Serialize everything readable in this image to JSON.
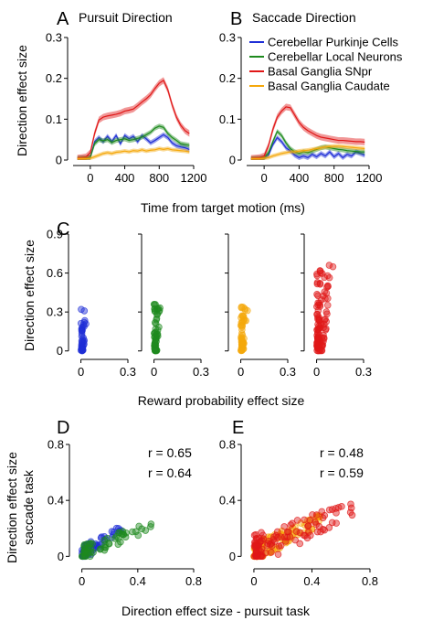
{
  "colors": {
    "purkinje": "#1f2fd6",
    "local": "#1e8a1e",
    "snpr": "#e01818",
    "caudate": "#f5a80c"
  },
  "legend": [
    {
      "key": "purkinje",
      "label": "Cerebellar Purkinje Cells"
    },
    {
      "key": "local",
      "label": "Cerebellar Local Neurons"
    },
    {
      "key": "snpr",
      "label": "Basal Ganglia SNpr"
    },
    {
      "key": "caudate",
      "label": "Basal Ganglia Caudate"
    }
  ],
  "labels": {
    "A_letter": "A",
    "A_title": "Pursuit Direction",
    "B_letter": "B",
    "B_title": "Saccade Direction",
    "C_letter": "C",
    "D_letter": "D",
    "E_letter": "E",
    "ylab_top": "Direction effect size",
    "xlab_top": "Time from target motion (ms)",
    "ylab_C": "Direction effect size",
    "xlab_C": "Reward probability effect size",
    "ylab_D1": "Direction effect size",
    "ylab_D2": "saccade task",
    "xlab_DE": "Direction effect size - pursuit task",
    "D_r1": "r = 0.65",
    "D_r2": "r = 0.64",
    "E_r1": "r = 0.48",
    "E_r2": "r = 0.59"
  },
  "chart_data": [
    {
      "panel": "A",
      "type": "line",
      "title": "Pursuit Direction",
      "xlabel": "Time from target motion (ms)",
      "ylabel": "Direction effect size",
      "xlim": [
        -200,
        1200
      ],
      "ylim": [
        0,
        0.3
      ],
      "xticks": [
        0,
        400,
        800,
        1200
      ],
      "yticks": [
        0,
        0.1,
        0.2,
        0.3
      ],
      "x": [
        -150,
        -100,
        -50,
        0,
        50,
        100,
        150,
        200,
        250,
        300,
        350,
        400,
        450,
        500,
        550,
        600,
        650,
        700,
        750,
        800,
        850,
        900,
        950,
        1000,
        1050,
        1100,
        1150
      ],
      "series": [
        {
          "key": "purkinje",
          "band": 0.006,
          "values": [
            0.003,
            0.004,
            0.004,
            0.006,
            0.045,
            0.055,
            0.045,
            0.058,
            0.045,
            0.06,
            0.04,
            0.06,
            0.052,
            0.058,
            0.045,
            0.06,
            0.052,
            0.042,
            0.048,
            0.055,
            0.062,
            0.055,
            0.042,
            0.035,
            0.032,
            0.03,
            0.026
          ]
        },
        {
          "key": "local",
          "band": 0.006,
          "values": [
            0.004,
            0.005,
            0.005,
            0.007,
            0.04,
            0.05,
            0.047,
            0.05,
            0.043,
            0.048,
            0.05,
            0.052,
            0.048,
            0.05,
            0.053,
            0.056,
            0.062,
            0.068,
            0.078,
            0.083,
            0.08,
            0.065,
            0.055,
            0.048,
            0.04,
            0.038,
            0.036
          ]
        },
        {
          "key": "snpr",
          "band": 0.008,
          "values": [
            0.005,
            0.006,
            0.008,
            0.018,
            0.065,
            0.098,
            0.105,
            0.108,
            0.11,
            0.112,
            0.115,
            0.12,
            0.122,
            0.125,
            0.133,
            0.142,
            0.15,
            0.16,
            0.175,
            0.188,
            0.195,
            0.172,
            0.135,
            0.105,
            0.085,
            0.072,
            0.065
          ]
        },
        {
          "key": "caudate",
          "band": 0.005,
          "values": [
            0.003,
            0.003,
            0.003,
            0.004,
            0.008,
            0.012,
            0.016,
            0.018,
            0.016,
            0.019,
            0.02,
            0.022,
            0.02,
            0.023,
            0.022,
            0.025,
            0.022,
            0.024,
            0.025,
            0.028,
            0.026,
            0.028,
            0.025,
            0.024,
            0.023,
            0.022,
            0.02
          ]
        }
      ]
    },
    {
      "panel": "B",
      "type": "line",
      "title": "Saccade Direction",
      "xlabel": "Time from target motion (ms)",
      "ylabel": "",
      "xlim": [
        -200,
        1200
      ],
      "ylim": [
        0,
        0.3
      ],
      "xticks": [
        0,
        400,
        800,
        1200
      ],
      "yticks": [
        0,
        0.1,
        0.2,
        0.3
      ],
      "x": [
        -150,
        -100,
        -50,
        0,
        50,
        100,
        150,
        200,
        250,
        300,
        350,
        400,
        450,
        500,
        550,
        600,
        650,
        700,
        750,
        800,
        850,
        900,
        950,
        1000,
        1050,
        1100,
        1150
      ],
      "series": [
        {
          "key": "purkinje",
          "band": 0.006,
          "values": [
            0.003,
            0.003,
            0.004,
            0.005,
            0.012,
            0.038,
            0.055,
            0.045,
            0.03,
            0.022,
            0.012,
            0.006,
            0.01,
            0.006,
            0.014,
            0.008,
            0.016,
            0.01,
            0.02,
            0.008,
            0.016,
            0.006,
            0.014,
            0.01,
            0.02,
            0.016,
            0.012
          ]
        },
        {
          "key": "local",
          "band": 0.006,
          "values": [
            0.003,
            0.004,
            0.004,
            0.006,
            0.018,
            0.045,
            0.07,
            0.06,
            0.042,
            0.028,
            0.02,
            0.016,
            0.02,
            0.018,
            0.022,
            0.026,
            0.03,
            0.032,
            0.03,
            0.028,
            0.026,
            0.025,
            0.023,
            0.022,
            0.021,
            0.02,
            0.02
          ]
        },
        {
          "key": "snpr",
          "band": 0.008,
          "values": [
            0.004,
            0.005,
            0.006,
            0.01,
            0.035,
            0.075,
            0.105,
            0.12,
            0.13,
            0.128,
            0.11,
            0.092,
            0.08,
            0.072,
            0.066,
            0.06,
            0.056,
            0.054,
            0.052,
            0.05,
            0.048,
            0.048,
            0.047,
            0.046,
            0.045,
            0.045,
            0.044
          ]
        },
        {
          "key": "caudate",
          "band": 0.005,
          "values": [
            0.003,
            0.003,
            0.003,
            0.004,
            0.006,
            0.01,
            0.013,
            0.016,
            0.018,
            0.02,
            0.02,
            0.022,
            0.023,
            0.024,
            0.026,
            0.028,
            0.03,
            0.032,
            0.033,
            0.034,
            0.034,
            0.033,
            0.032,
            0.031,
            0.03,
            0.029,
            0.028
          ]
        }
      ]
    },
    {
      "panel": "C",
      "type": "scatter",
      "xlabel": "Reward probability effect size",
      "ylabel": "Direction effect size",
      "xlim": [
        -0.05,
        0.3
      ],
      "ylim": [
        -0.03,
        0.9
      ],
      "xticks": [
        0,
        0.3
      ],
      "yticks": [
        0,
        0.3,
        0.6,
        0.9
      ],
      "groups": [
        {
          "key": "purkinje",
          "n": 45,
          "xmax": 0.04,
          "ymax": 0.33,
          "seed": 11
        },
        {
          "key": "local",
          "n": 60,
          "xmax": 0.05,
          "ymax": 0.36,
          "seed": 23
        },
        {
          "key": "caudate",
          "n": 60,
          "xmax": 0.04,
          "ymax": 0.34,
          "seed": 37
        },
        {
          "key": "snpr",
          "n": 110,
          "xmax": 0.12,
          "ymax": 0.66,
          "seed": 51
        }
      ]
    },
    {
      "panel": "D",
      "type": "scatter",
      "xlabel": "Direction effect size - pursuit task",
      "ylabel": "Direction effect size saccade task",
      "xlim": [
        -0.05,
        0.8
      ],
      "ylim": [
        -0.05,
        0.8
      ],
      "xticks": [
        0,
        0.4,
        0.8
      ],
      "yticks": [
        0,
        0.4,
        0.8
      ],
      "groups": [
        {
          "key": "purkinje",
          "r": 0.65,
          "n": 50,
          "xscale": 0.28,
          "yscale": 0.3,
          "seed": 71
        },
        {
          "key": "local",
          "r": 0.64,
          "n": 55,
          "xscale": 0.55,
          "yscale": 0.36,
          "seed": 83
        }
      ]
    },
    {
      "panel": "E",
      "type": "scatter",
      "xlabel": "Direction effect size - pursuit task",
      "ylabel": "",
      "xlim": [
        -0.05,
        0.8
      ],
      "ylim": [
        -0.05,
        0.8
      ],
      "xticks": [
        0,
        0.4,
        0.8
      ],
      "yticks": [
        0,
        0.4,
        0.8
      ],
      "groups": [
        {
          "key": "caudate",
          "r": 0.59,
          "n": 110,
          "xscale": 0.45,
          "yscale": 0.42,
          "seed": 97
        },
        {
          "key": "snpr",
          "r": 0.48,
          "n": 110,
          "xscale": 0.66,
          "yscale": 0.66,
          "seed": 113
        }
      ]
    }
  ]
}
